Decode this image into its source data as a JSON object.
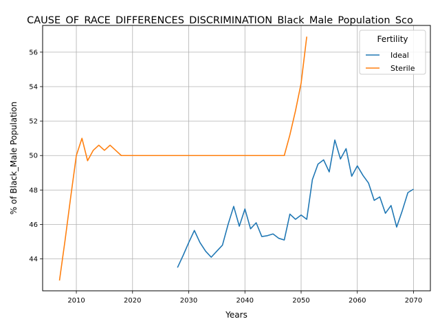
{
  "chart_data": {
    "type": "line",
    "title": "CAUSE_OF_RACE_DIFFERENCES_DISCRIMINATION_Black_Male_Population_Sco",
    "xlabel": "Years",
    "ylabel": "% of Black_Male Population",
    "xlim": [
      2004,
      2073
    ],
    "ylim": [
      42.15,
      57.55
    ],
    "xticks": [
      2010,
      2020,
      2030,
      2040,
      2050,
      2060,
      2070
    ],
    "yticks": [
      44,
      46,
      48,
      50,
      52,
      54,
      56
    ],
    "grid": true,
    "legend": {
      "title": "Fertility",
      "placement": "top-right"
    },
    "series": [
      {
        "name": "Ideal",
        "color": "#1f77b4",
        "x": [
          2028,
          2029,
          2030,
          2031,
          2032,
          2033,
          2034,
          2035,
          2036,
          2037,
          2038,
          2039,
          2040,
          2041,
          2042,
          2043,
          2044,
          2045,
          2046,
          2047,
          2048,
          2049,
          2050,
          2051,
          2052,
          2053,
          2054,
          2055,
          2056,
          2057,
          2058,
          2059,
          2060,
          2061,
          2062,
          2063,
          2064,
          2065,
          2066,
          2067,
          2068,
          2069,
          2070
        ],
        "y": [
          43.5,
          44.2,
          44.95,
          45.65,
          44.95,
          44.45,
          44.1,
          44.45,
          44.8,
          46.0,
          47.05,
          45.9,
          46.9,
          45.75,
          46.1,
          45.3,
          45.35,
          45.45,
          45.2,
          45.1,
          46.6,
          46.3,
          46.55,
          46.3,
          48.6,
          49.5,
          49.75,
          49.05,
          50.9,
          49.8,
          50.4,
          48.8,
          49.4,
          48.85,
          48.4,
          47.4,
          47.6,
          46.65,
          47.1,
          45.85,
          46.8,
          47.85,
          48.05
        ]
      },
      {
        "name": "Sterile",
        "color": "#ff7f0e",
        "x": [
          2007,
          2008,
          2009,
          2010,
          2011,
          2012,
          2013,
          2014,
          2015,
          2016,
          2017,
          2018,
          2019,
          2020,
          2021,
          2022,
          2023,
          2024,
          2025,
          2026,
          2027,
          2028,
          2029,
          2030,
          2031,
          2032,
          2033,
          2034,
          2035,
          2036,
          2037,
          2038,
          2039,
          2040,
          2041,
          2042,
          2043,
          2044,
          2045,
          2046,
          2047,
          2048,
          2049,
          2050,
          2051
        ],
        "y": [
          42.75,
          45.1,
          47.6,
          50.0,
          51.0,
          49.7,
          50.3,
          50.6,
          50.3,
          50.6,
          50.3,
          50.0,
          50.0,
          50.0,
          50.0,
          50.0,
          50.0,
          50.0,
          50.0,
          50.0,
          50.0,
          50.0,
          50.0,
          50.0,
          50.0,
          50.0,
          50.0,
          50.0,
          50.0,
          50.0,
          50.0,
          50.0,
          50.0,
          50.0,
          50.0,
          50.0,
          50.0,
          50.0,
          50.0,
          50.0,
          50.0,
          51.2,
          52.6,
          54.2,
          56.9
        ]
      }
    ]
  }
}
